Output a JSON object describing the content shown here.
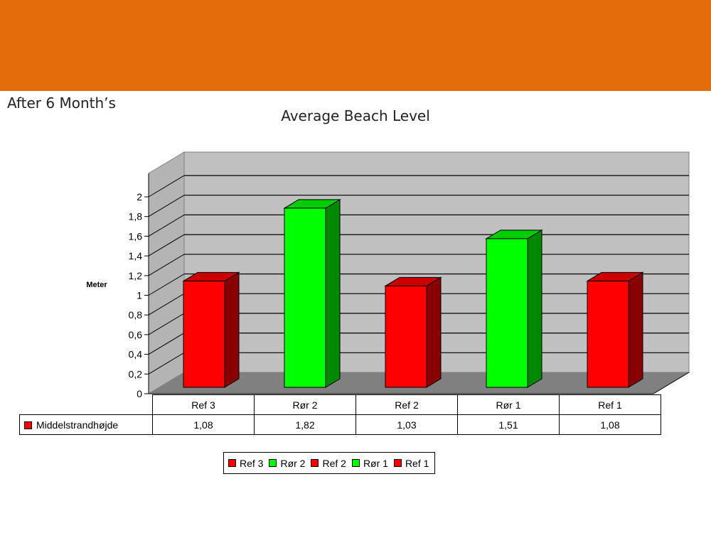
{
  "header": {
    "subtitle": "After 6 Month’s"
  },
  "chart_data": {
    "type": "bar",
    "title": "Average Beach Level",
    "ylabel": "Meter",
    "xlabel": "",
    "ylim": [
      0,
      2
    ],
    "y_ticks": [
      "0",
      "0,2",
      "0,4",
      "0,6",
      "0,8",
      "1",
      "1,2",
      "1,4",
      "1,6",
      "1,8",
      "2"
    ],
    "categories": [
      "Ref 3",
      "Rør 2",
      "Ref 2",
      "Rør 1",
      "Ref 1"
    ],
    "values": [
      1.08,
      1.82,
      1.03,
      1.51,
      1.08
    ],
    "value_labels": [
      "1,08",
      "1,82",
      "1,03",
      "1,51",
      "1,08"
    ],
    "series_name": "Middelstrandhøjde",
    "grid": true,
    "bar_colors": [
      "#ff0000",
      "#00ff00",
      "#ff0000",
      "#00ff00",
      "#ff0000"
    ],
    "legend": {
      "placement": "bottom",
      "entries": [
        {
          "label": "Ref 3",
          "color": "#ff0000"
        },
        {
          "label": "Rør 2",
          "color": "#00ff00"
        },
        {
          "label": "Ref 2",
          "color": "#ff0000"
        },
        {
          "label": "Rør 1",
          "color": "#00ff00"
        },
        {
          "label": "Ref 1",
          "color": "#ff0000"
        }
      ]
    }
  }
}
